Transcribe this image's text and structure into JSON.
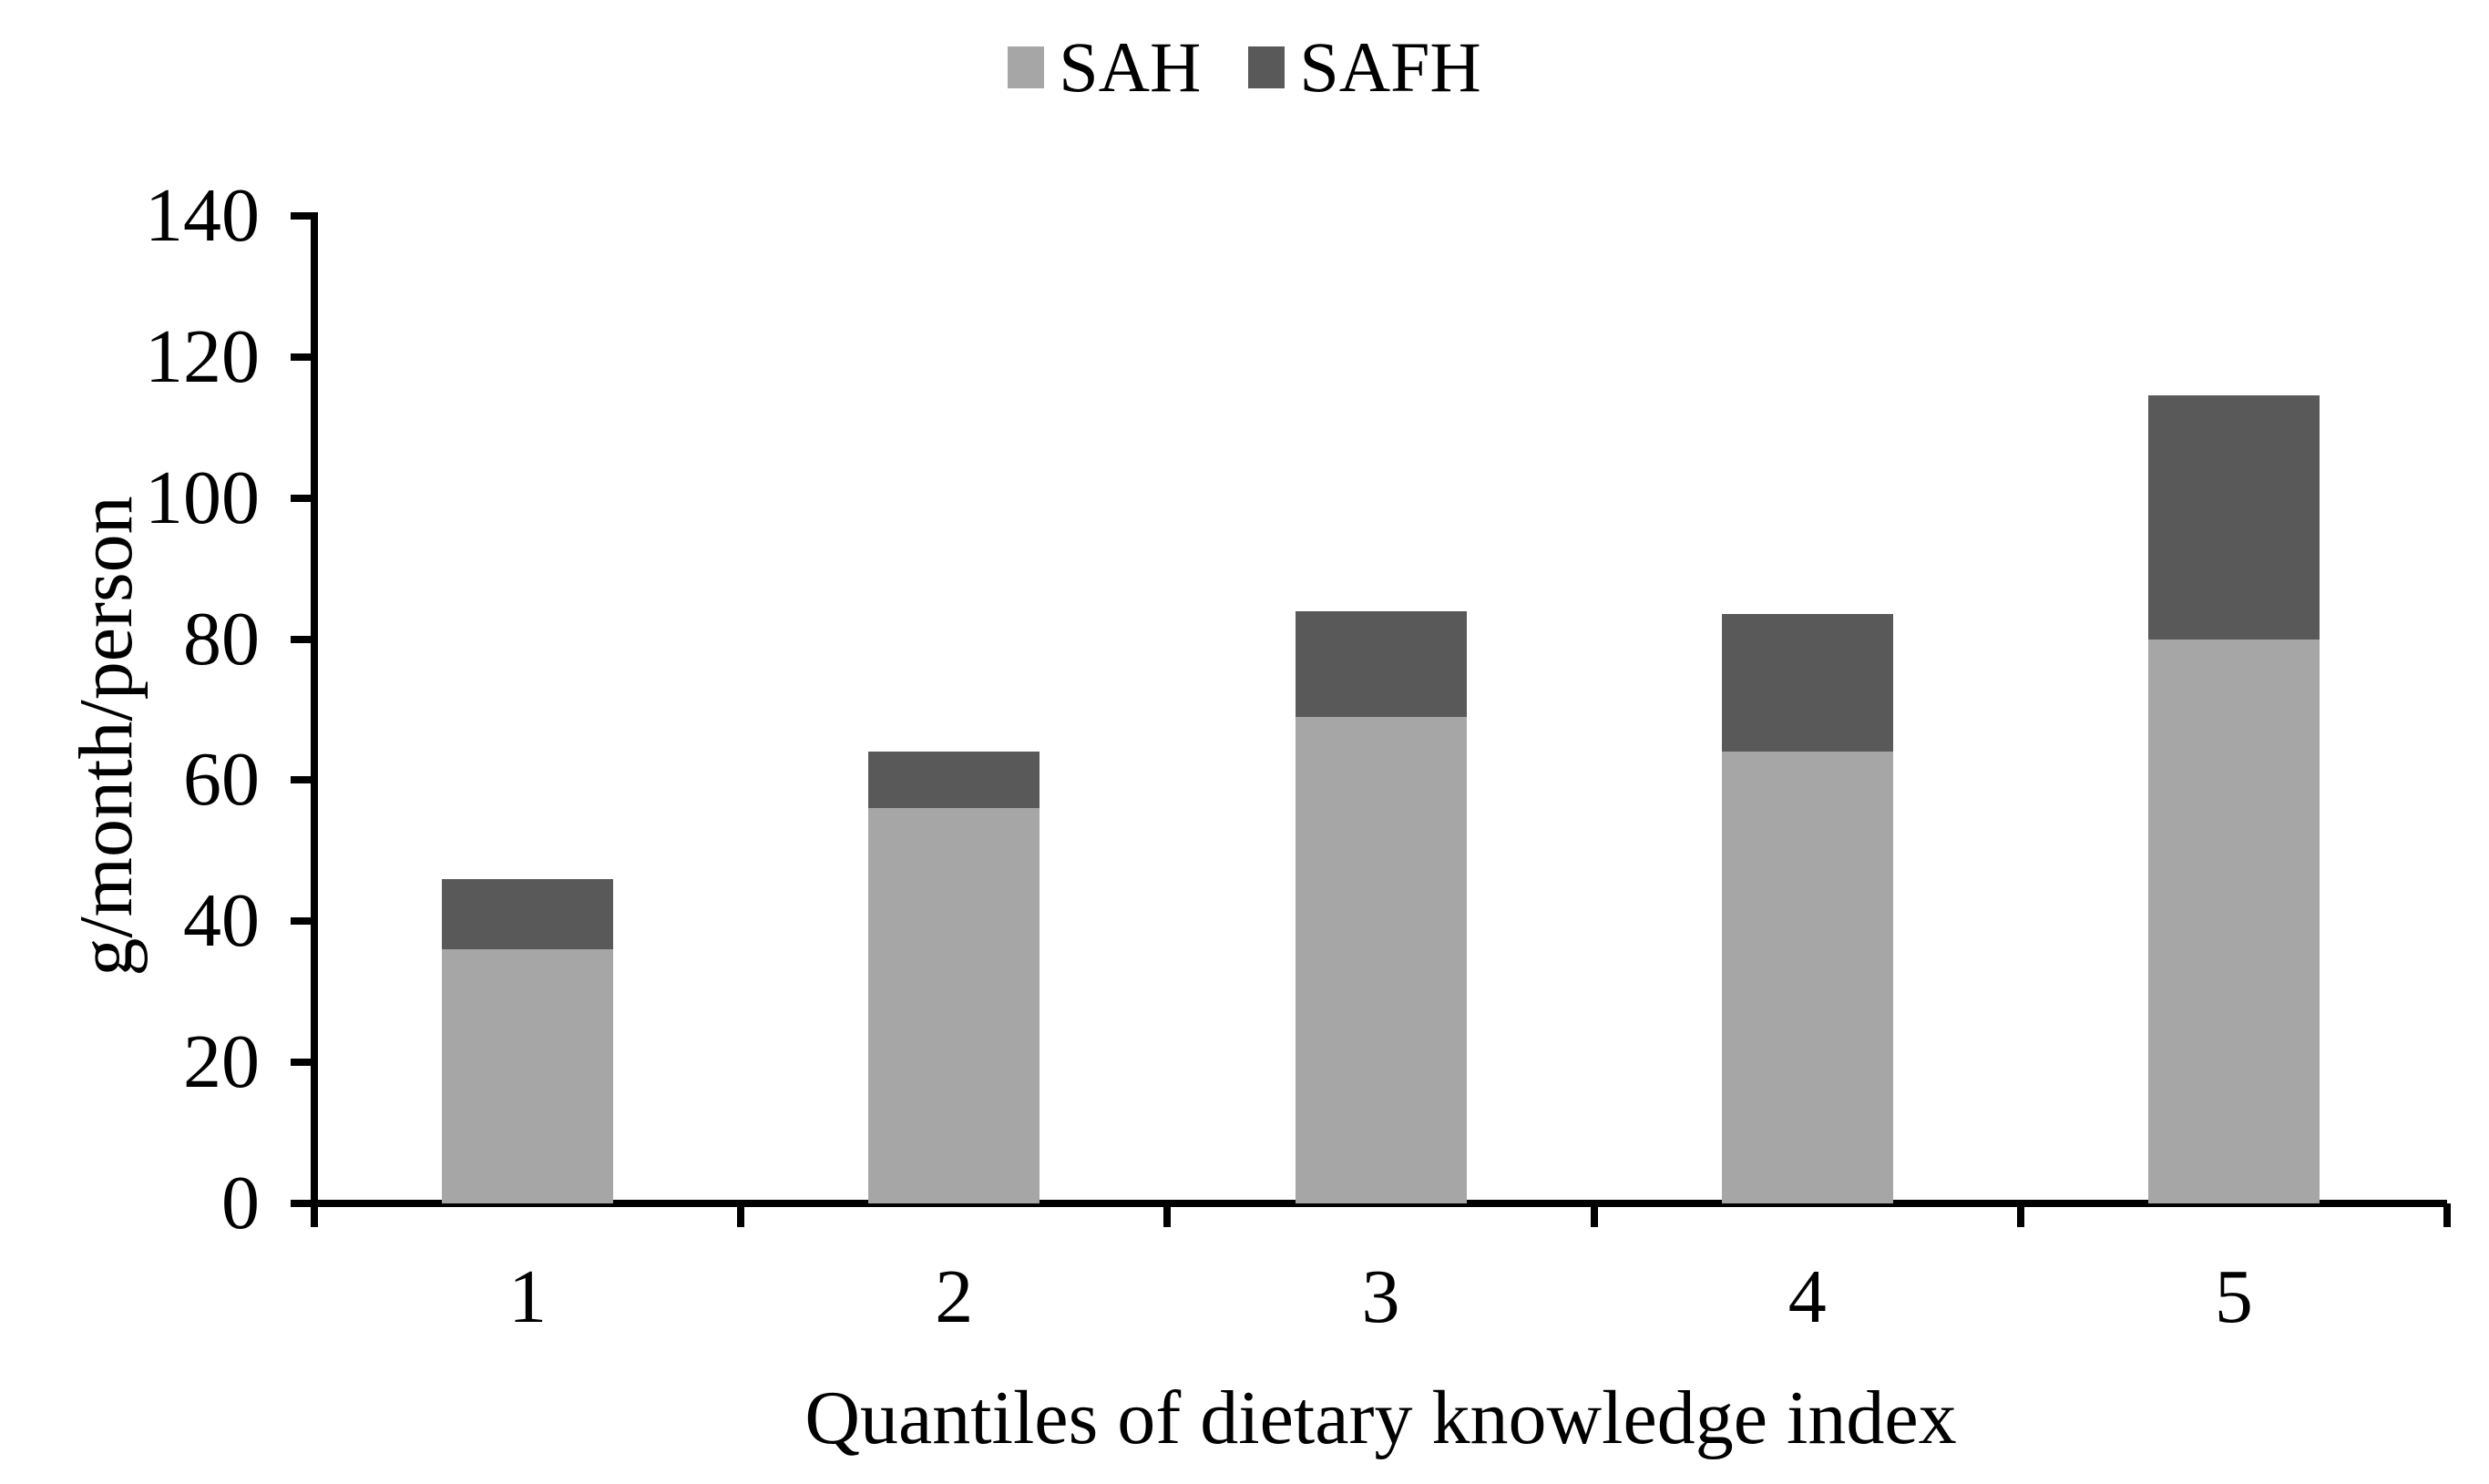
{
  "chart_data": {
    "type": "bar",
    "stacked": true,
    "title": "",
    "categories": [
      "1",
      "2",
      "3",
      "4",
      "5"
    ],
    "series": [
      {
        "name": "SAH",
        "color": "#A6A6A6",
        "values": [
          36,
          56,
          69,
          64,
          80
        ]
      },
      {
        "name": "SAFH",
        "color": "#595959",
        "values": [
          10,
          8,
          15,
          19.5,
          34.5
        ]
      }
    ],
    "stack_totals": [
      46,
      64,
      84,
      83.5,
      114.5
    ],
    "xlabel": "Quantiles of dietary knowledge index",
    "ylabel": "g/month/person",
    "ylim": [
      0,
      140
    ],
    "ytick_step": 20,
    "ytick_labels": [
      "0",
      "20",
      "40",
      "60",
      "80",
      "100",
      "120",
      "140"
    ],
    "legend_position": "top-center",
    "grid": false,
    "axis_color": "#000000",
    "background_color": "#FFFFFF"
  }
}
